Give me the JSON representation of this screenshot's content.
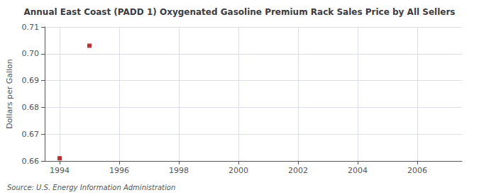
{
  "chart_data": {
    "type": "scatter",
    "title": "Annual East Coast (PADD 1) Oxygenated Gasoline Premium Rack Sales Price by All Sellers",
    "ylabel": "Dollars per Gallon",
    "annotations": [
      "Source: U.S. Energy Information Administration"
    ],
    "x": [
      1994,
      1995
    ],
    "values": [
      0.661,
      0.703
    ],
    "color": "#aa0000",
    "marker": "square",
    "xlim": [
      1993.5,
      2007.5
    ],
    "xticks": [
      1994,
      1996,
      1998,
      2000,
      2002,
      2004,
      2006
    ],
    "ylim": [
      0.66,
      0.71
    ],
    "yticks": [
      0.66,
      0.67,
      0.68,
      0.69,
      {
        "value": 0.7,
        "label": "0.70"
      },
      0.71
    ],
    "grid": true
  }
}
